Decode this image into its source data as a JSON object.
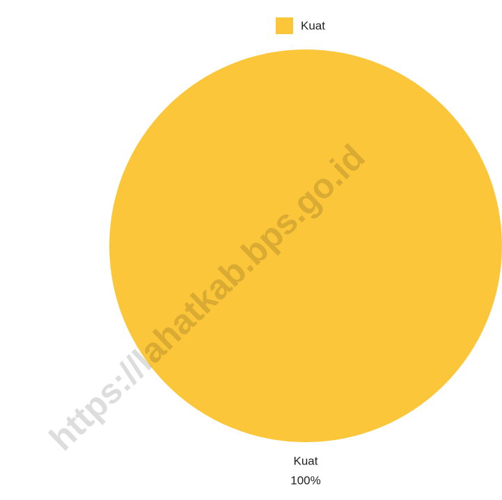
{
  "chart_data": {
    "type": "pie",
    "categories": [
      "Kuat"
    ],
    "values": [
      100
    ],
    "value_labels": [
      "100%"
    ],
    "colors": [
      "#fcc63a"
    ],
    "legend": "top",
    "watermark": "https://lahatkab.bps.go.id"
  }
}
